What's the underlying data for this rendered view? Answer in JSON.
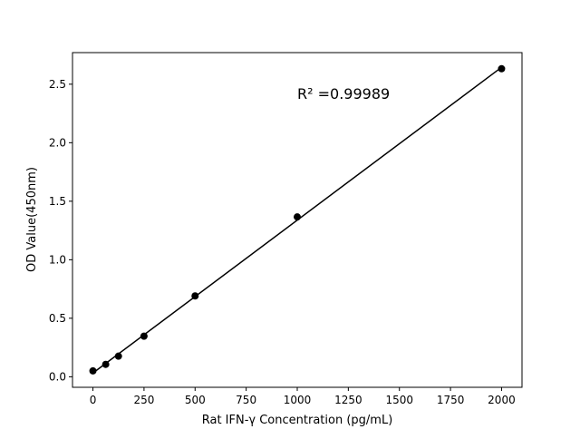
{
  "chart_data": {
    "type": "scatter",
    "title": "",
    "xlabel": "Rat IFN-γ Concentration (pg/mL)",
    "ylabel": "OD Value(450nm)",
    "xlim": [
      -100,
      2100
    ],
    "ylim": [
      -0.09,
      2.77
    ],
    "xticks": [
      0,
      250,
      500,
      750,
      1000,
      1250,
      1500,
      1750,
      2000
    ],
    "yticks": [
      0.0,
      0.5,
      1.0,
      1.5,
      2.0,
      2.5
    ],
    "xtick_labels": [
      "0",
      "250",
      "500",
      "750",
      "1000",
      "1250",
      "1500",
      "1750",
      "2000"
    ],
    "ytick_labels": [
      "0.0",
      "0.5",
      "1.0",
      "1.5",
      "2.0",
      "2.5"
    ],
    "grid": false,
    "series": [
      {
        "x": [
          0,
          62.5,
          125,
          250,
          500,
          1000,
          2000
        ],
        "y": [
          0.05,
          0.106,
          0.176,
          0.347,
          0.691,
          1.366,
          2.632
        ],
        "color": "#000000",
        "marker": "circle",
        "fit_line": "linear"
      }
    ],
    "annotation": "R² =0.99989"
  }
}
